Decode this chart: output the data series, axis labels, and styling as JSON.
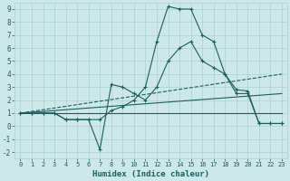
{
  "xlabel": "Humidex (Indice chaleur)",
  "xlim": [
    -0.5,
    23.5
  ],
  "ylim": [
    -2.5,
    9.5
  ],
  "xticks": [
    0,
    1,
    2,
    3,
    4,
    5,
    6,
    7,
    8,
    9,
    10,
    11,
    12,
    13,
    14,
    15,
    16,
    17,
    18,
    19,
    20,
    21,
    22,
    23
  ],
  "yticks": [
    -2,
    -1,
    0,
    1,
    2,
    3,
    4,
    5,
    6,
    7,
    8,
    9
  ],
  "background_color": "#cde8e8",
  "grid_color": "#aad0d0",
  "line_color": "#1a5f5f",
  "lines": [
    {
      "x": [
        0,
        1,
        2,
        3,
        4,
        5,
        6,
        7,
        8,
        9,
        10,
        11,
        12,
        13,
        14,
        15,
        16,
        17,
        18,
        19,
        20,
        21,
        22,
        23
      ],
      "y": [
        1,
        1,
        1,
        1,
        0.5,
        0.5,
        0.5,
        0.5,
        1.2,
        1.5,
        2,
        3,
        6.5,
        9.2,
        9,
        9,
        7,
        6.5,
        4,
        2.5,
        2.5,
        0.2,
        0.2,
        0.2
      ],
      "marker": true
    },
    {
      "x": [
        0,
        1,
        2,
        3,
        4,
        5,
        6,
        7,
        8,
        9,
        10,
        11,
        12,
        13,
        14,
        15,
        16,
        17,
        18,
        19,
        20,
        21,
        22,
        23
      ],
      "y": [
        1,
        1,
        1,
        1,
        0.5,
        0.5,
        0.5,
        -1.8,
        3.2,
        3,
        2.5,
        2,
        3,
        5,
        6,
        6.5,
        5,
        4.5,
        4,
        2.8,
        2.7,
        0.2,
        0.2,
        0.2
      ],
      "marker": true
    },
    {
      "x": [
        0,
        23
      ],
      "y": [
        1,
        1
      ],
      "marker": false,
      "linestyle": "solid"
    },
    {
      "x": [
        0,
        23
      ],
      "y": [
        1,
        2.5
      ],
      "marker": false,
      "linestyle": "solid"
    },
    {
      "x": [
        0,
        23
      ],
      "y": [
        1,
        4.0
      ],
      "marker": false,
      "linestyle": "dashed"
    }
  ]
}
